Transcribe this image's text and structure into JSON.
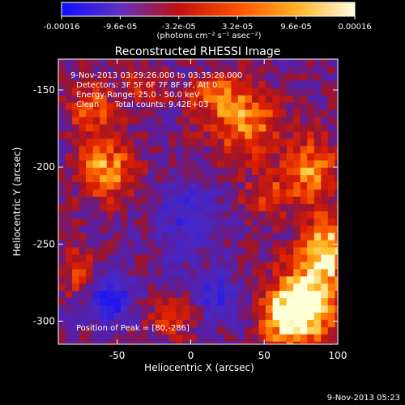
{
  "chart_data": {
    "type": "heatmap",
    "title": "Reconstructed RHESSI Image",
    "xlabel": "Heliocentric X (arcsec)",
    "ylabel": "Heliocentric Y (arcsec)",
    "xlim": [
      -90,
      100
    ],
    "ylim": [
      -315,
      -130
    ],
    "x_ticks": [
      -50,
      0,
      50,
      100
    ],
    "y_ticks": [
      -150,
      -200,
      -250,
      -300
    ],
    "colorbar": {
      "range": [
        -0.00016,
        0.00016
      ],
      "tick_labels": [
        "-0.00016",
        "-9.6e-05",
        "-3.2e-05",
        "3.2e-05",
        "9.6e-05",
        "0.00016"
      ],
      "unit_label": "(photons cm⁻² s⁻¹ asec⁻²)",
      "colors": [
        "#1010ff",
        "#6030c0",
        "#c01010",
        "#ff5000",
        "#ffb020",
        "#ffffe0"
      ]
    },
    "annotations": [
      "9-Nov-2013 03:29:26.000 to 03:35:20.000",
      "Detectors: 3F 5F 6F 7F 8F 9F, Att 0",
      "Energy Range: 25.0 - 50.0 keV",
      "Clean      Total counts: 9.42E+03"
    ],
    "peak_label": "Position of Peak = [80,-286]",
    "hotspots": [
      {
        "x": 78,
        "y": -285,
        "amp": 1.0,
        "sx": 16,
        "sy": 22
      },
      {
        "x": 90,
        "y": -250,
        "amp": 0.85,
        "sx": 10,
        "sy": 14
      },
      {
        "x": -60,
        "y": -200,
        "amp": 0.8,
        "sx": 14,
        "sy": 14
      },
      {
        "x": -70,
        "y": -160,
        "amp": 0.55,
        "sx": 12,
        "sy": 12
      },
      {
        "x": 35,
        "y": -170,
        "amp": 0.7,
        "sx": 18,
        "sy": 16
      },
      {
        "x": 15,
        "y": -150,
        "amp": 0.55,
        "sx": 14,
        "sy": 10
      },
      {
        "x": 80,
        "y": -200,
        "amp": 0.75,
        "sx": 12,
        "sy": 16
      },
      {
        "x": 50,
        "y": -215,
        "amp": 0.5,
        "sx": 12,
        "sy": 10
      },
      {
        "x": 60,
        "y": -295,
        "amp": 0.7,
        "sx": 12,
        "sy": 14
      },
      {
        "x": -15,
        "y": -295,
        "amp": 0.45,
        "sx": 12,
        "sy": 10
      },
      {
        "x": -80,
        "y": -265,
        "amp": 0.45,
        "sx": 10,
        "sy": 14
      },
      {
        "x": -35,
        "y": -145,
        "amp": 0.35,
        "sx": 10,
        "sy": 10
      }
    ],
    "coldspots": [
      {
        "x": -58,
        "y": -283,
        "amp": 0.9,
        "sx": 10,
        "sy": 10
      },
      {
        "x": 15,
        "y": -282,
        "amp": 0.6,
        "sx": 10,
        "sy": 10
      },
      {
        "x": -5,
        "y": -230,
        "amp": 0.5,
        "sx": 14,
        "sy": 16
      }
    ]
  },
  "timestamp": "9-Nov-2013 05:23"
}
